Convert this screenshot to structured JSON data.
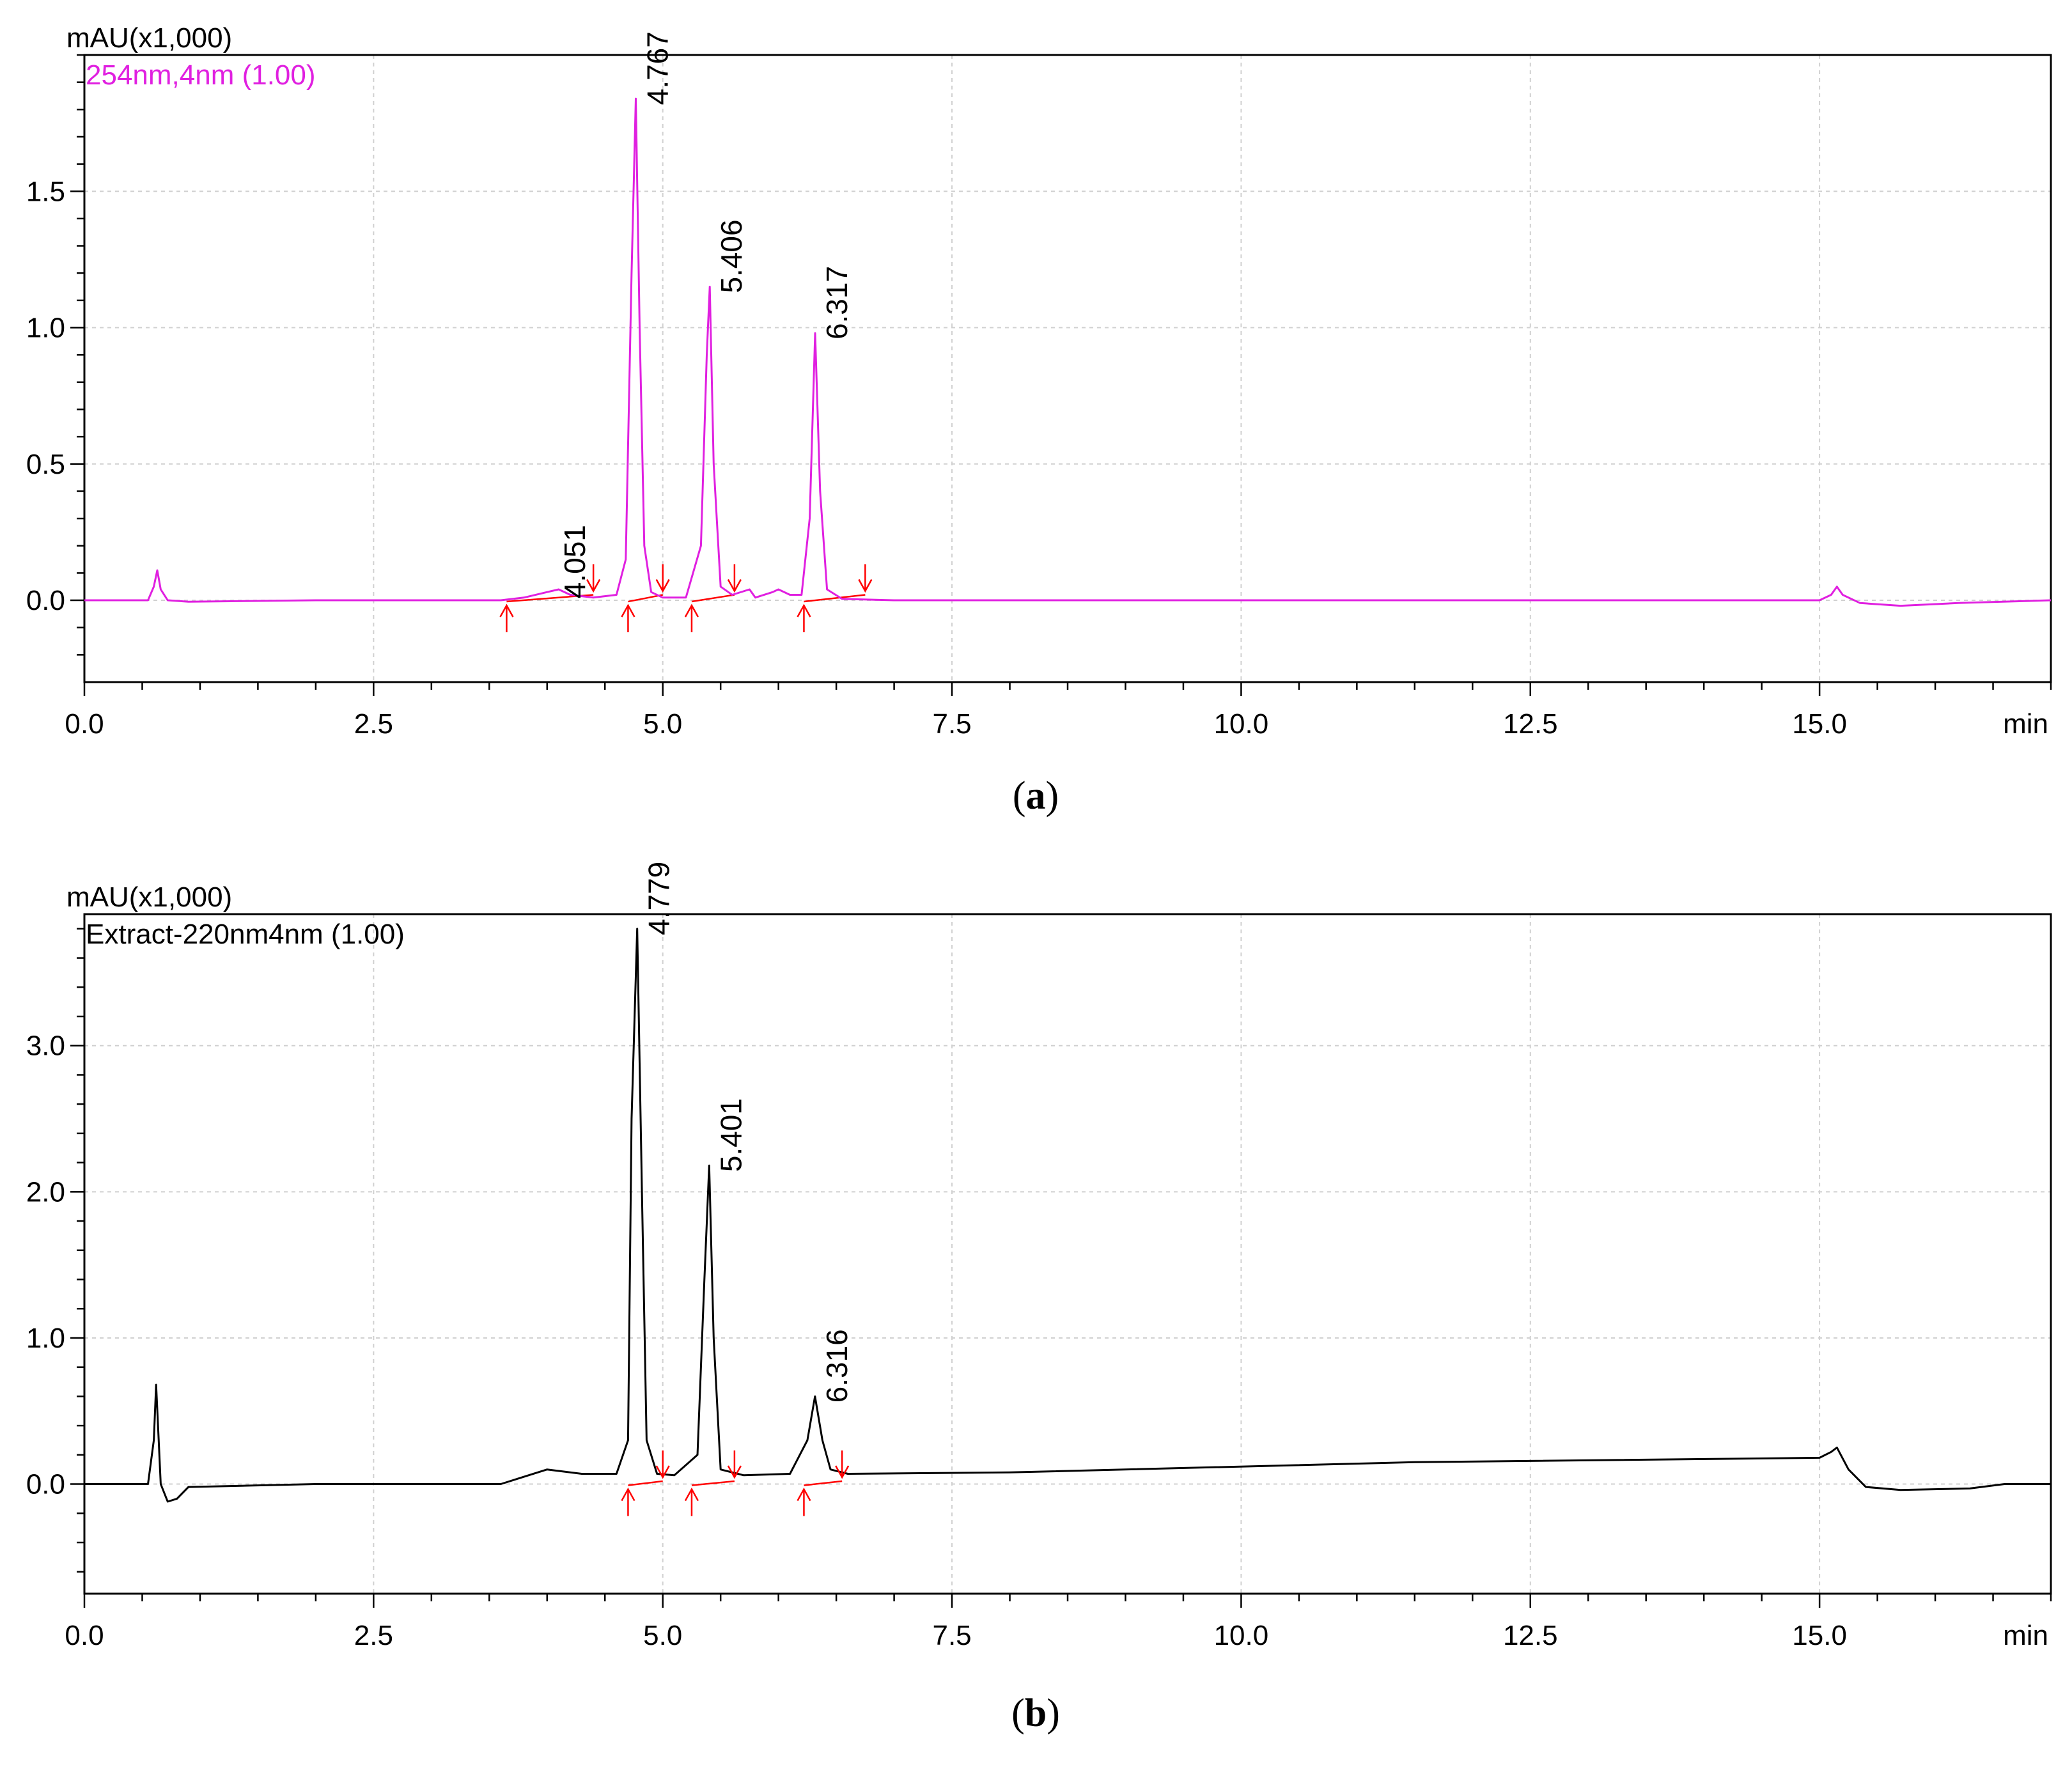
{
  "chart_data": [
    {
      "type": "line",
      "y_unit_label": "mAU(x1,000)",
      "x_unit_label": "min",
      "series_label": "254nm,4nm (1.00)",
      "series_color": "#e020e0",
      "xlim": [
        0,
        17
      ],
      "ylim": [
        -0.3,
        2.0
      ],
      "x_ticks": [
        0,
        2.5,
        5,
        7.5,
        10,
        12.5,
        15
      ],
      "x_tick_labels": [
        "0.0",
        "2.5",
        "5.0",
        "7.5",
        "10.0",
        "12.5",
        "15.0"
      ],
      "y_ticks": [
        0,
        0.5,
        1.0,
        1.5
      ],
      "y_tick_labels": [
        "0.0",
        "0.5",
        "1.0",
        "1.5"
      ],
      "y_minor_step": 0.1,
      "x_minor_step": 0.5,
      "grid": true,
      "peaks": [
        {
          "label": "4.051",
          "x": 4.051,
          "y": 0.03
        },
        {
          "label": "4.767",
          "x": 4.767,
          "y": 1.84
        },
        {
          "label": "5.406",
          "x": 5.406,
          "y": 1.15
        },
        {
          "label": "6.317",
          "x": 6.317,
          "y": 0.98
        }
      ],
      "series": [
        {
          "x": [
            0,
            0.55,
            0.6,
            0.63,
            0.66,
            0.72,
            0.9,
            2.0,
            3.6,
            3.8,
            4.0,
            4.1,
            4.2,
            4.4,
            4.6,
            4.68,
            4.73,
            4.767,
            4.8,
            4.84,
            4.9,
            5.0,
            5.2,
            5.33,
            5.38,
            5.406,
            5.44,
            5.5,
            5.6,
            5.75,
            5.8,
            5.95,
            6.0,
            6.1,
            6.2,
            6.27,
            6.317,
            6.36,
            6.42,
            6.55,
            7.0,
            10.0,
            15.0,
            15.1,
            15.15,
            15.2,
            15.35,
            15.7,
            16.2,
            17.0
          ],
          "y": [
            0,
            0,
            0.05,
            0.11,
            0.04,
            0.0,
            -0.005,
            0,
            0,
            0.01,
            0.03,
            0.04,
            0.02,
            0.01,
            0.02,
            0.15,
            1.2,
            1.84,
            1.0,
            0.2,
            0.03,
            0.01,
            0.01,
            0.2,
            0.9,
            1.15,
            0.5,
            0.05,
            0.02,
            0.04,
            0.01,
            0.03,
            0.04,
            0.02,
            0.02,
            0.3,
            0.98,
            0.4,
            0.04,
            0.005,
            0,
            0,
            0,
            0.02,
            0.05,
            0.02,
            -0.01,
            -0.02,
            -0.01,
            0
          ]
        }
      ],
      "markers_up": [
        3.65,
        4.7,
        5.25,
        6.22
      ],
      "markers_down": [
        4.4,
        5.0,
        5.62,
        6.75
      ],
      "baseline_segments": [
        [
          3.65,
          4.4
        ],
        [
          4.7,
          5.0
        ],
        [
          5.25,
          5.62
        ],
        [
          6.22,
          6.75
        ]
      ],
      "marker_color": "#ff0000"
    },
    {
      "type": "line",
      "y_unit_label": "mAU(x1,000)",
      "x_unit_label": "min",
      "series_label": "Extract-220nm4nm (1.00)",
      "series_color": "#000000",
      "xlim": [
        0,
        17
      ],
      "ylim": [
        -0.75,
        3.9
      ],
      "x_ticks": [
        0,
        2.5,
        5,
        7.5,
        10,
        12.5,
        15
      ],
      "x_tick_labels": [
        "0.0",
        "2.5",
        "5.0",
        "7.5",
        "10.0",
        "12.5",
        "15.0"
      ],
      "y_ticks": [
        0,
        1.0,
        2.0,
        3.0
      ],
      "y_tick_labels": [
        "0.0",
        "1.0",
        "2.0",
        "3.0"
      ],
      "y_minor_step": 0.2,
      "x_minor_step": 0.5,
      "grid": true,
      "peaks": [
        {
          "label": "4.779",
          "x": 4.779,
          "y": 3.8
        },
        {
          "label": "5.401",
          "x": 5.401,
          "y": 2.18
        },
        {
          "label": "6.316",
          "x": 6.316,
          "y": 0.6
        }
      ],
      "series": [
        {
          "x": [
            0,
            0.55,
            0.6,
            0.62,
            0.66,
            0.72,
            0.8,
            0.9,
            2.0,
            3.6,
            3.8,
            4.0,
            4.1,
            4.3,
            4.6,
            4.7,
            4.73,
            4.779,
            4.82,
            4.86,
            4.95,
            5.1,
            5.3,
            5.36,
            5.401,
            5.44,
            5.5,
            5.7,
            6.1,
            6.25,
            6.316,
            6.38,
            6.45,
            6.6,
            8.0,
            11.5,
            15.0,
            15.1,
            15.15,
            15.25,
            15.4,
            15.7,
            16.3,
            16.6,
            17.0
          ],
          "y": [
            0,
            0,
            0.3,
            0.68,
            0.0,
            -0.12,
            -0.1,
            -0.02,
            0,
            0,
            0.05,
            0.1,
            0.09,
            0.07,
            0.07,
            0.3,
            2.5,
            3.8,
            2.0,
            0.3,
            0.07,
            0.06,
            0.2,
            1.4,
            2.18,
            1.0,
            0.1,
            0.06,
            0.07,
            0.3,
            0.6,
            0.3,
            0.1,
            0.07,
            0.08,
            0.15,
            0.18,
            0.22,
            0.25,
            0.1,
            -0.02,
            -0.04,
            -0.03,
            0.0,
            0
          ]
        }
      ],
      "markers_up": [
        4.7,
        5.25,
        6.22
      ],
      "markers_down": [
        5.0,
        5.62,
        6.55
      ],
      "baseline_segments": [
        [
          4.7,
          5.0
        ],
        [
          5.25,
          5.62
        ],
        [
          6.22,
          6.55
        ]
      ],
      "marker_color": "#ff0000"
    }
  ],
  "captions": [
    "(a)",
    "(b)"
  ]
}
